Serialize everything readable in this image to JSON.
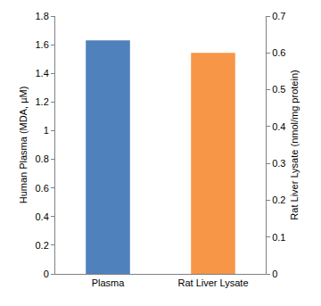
{
  "chart_data": {
    "type": "bar",
    "categories": [
      "Plasma",
      "Rat Liver Lysate"
    ],
    "series": [
      {
        "name": "Plasma",
        "color": "#4f81bd",
        "values": [
          1.63,
          null
        ]
      },
      {
        "name": "Rat Liver Lysate",
        "color": "#f79646",
        "axis": "y2",
        "values": [
          null,
          0.6
        ]
      }
    ],
    "y_label": "Human Plasma (MDA, µM)",
    "y2_label": "Rat Liver Lysate (nmol/mg protein)",
    "ylim": [
      0,
      1.8
    ],
    "yticks": [
      0,
      0.2,
      0.4,
      0.6,
      0.8,
      1,
      1.2,
      1.4,
      1.6,
      1.8
    ],
    "y2lim": [
      0,
      0.7
    ],
    "y2ticks": [
      0,
      0.1,
      0.2,
      0.3,
      0.4,
      0.5,
      0.6,
      0.7
    ],
    "grid": false
  }
}
